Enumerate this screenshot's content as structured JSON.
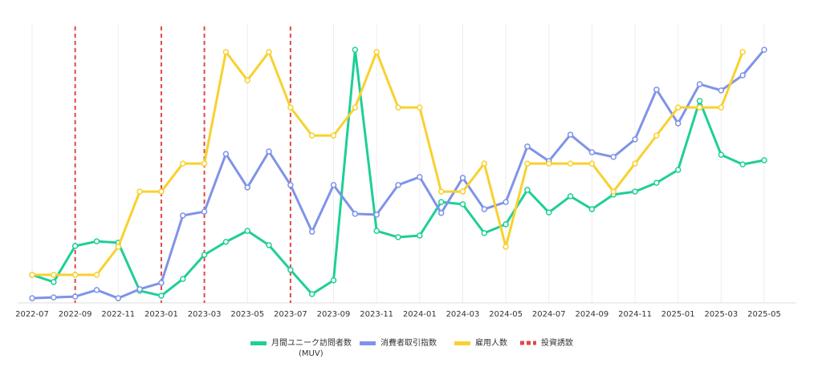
{
  "chart_data": {
    "type": "line",
    "categories": [
      "2022-07",
      null,
      "2022-09",
      null,
      "2022-11",
      null,
      "2023-01",
      null,
      "2023-03",
      null,
      "2023-05",
      null,
      "2023-07",
      null,
      "2023-09",
      null,
      "2023-11",
      null,
      "2024-01",
      null,
      "2024-03",
      null,
      "2024-05",
      null,
      "2024-07",
      null,
      "2024-09",
      null,
      "2024-11",
      null,
      "2025-01",
      null,
      "2025-03",
      null,
      "2025-05"
    ],
    "series": [
      {
        "name": "月間ユニーク訪問者数\n(MUV)",
        "color": "#1ecf97",
        "values": [
          10.2,
          7.6,
          20.7,
          22.4,
          21.9,
          4.4,
          2.6,
          8.7,
          17.5,
          22.2,
          26.2,
          21.0,
          12.0,
          3.2,
          8.2,
          92.1,
          26.2,
          23.9,
          24.5,
          36.7,
          35.9,
          25.4,
          28.6,
          41.1,
          32.9,
          38.8,
          34.1,
          39.4,
          40.5,
          43.7,
          48.4,
          73.5,
          53.9,
          50.4,
          51.9
        ]
      },
      {
        "name": "消費者取引指数",
        "color": "#7f93e8",
        "values": [
          1.7,
          2.0,
          2.3,
          4.7,
          1.7,
          5.0,
          7.3,
          31.8,
          33.2,
          54.2,
          42.0,
          55.1,
          42.9,
          25.9,
          42.9,
          32.4,
          32.1,
          42.9,
          45.8,
          32.7,
          45.5,
          34.1,
          36.7,
          56.9,
          51.6,
          61.2,
          54.8,
          53.1,
          59.5,
          77.6,
          65.3,
          79.6,
          77.3,
          82.8,
          92.1
        ]
      },
      {
        "name": "雇用人数",
        "color": "#f8d12f",
        "values": [
          10.2,
          10.2,
          10.2,
          10.2,
          20.4,
          40.5,
          40.5,
          50.7,
          50.7,
          91.3,
          81.0,
          91.3,
          71.1,
          60.9,
          60.9,
          71.1,
          91.3,
          71.1,
          71.1,
          40.5,
          40.5,
          50.7,
          20.4,
          50.7,
          50.7,
          50.7,
          50.7,
          40.5,
          50.7,
          60.9,
          71.1,
          71.1,
          71.1,
          91.3,
          null
        ]
      }
    ],
    "events": {
      "name": "投資誘致",
      "color": "#e04848",
      "x": [
        "2022-09",
        "2023-01",
        "2023-03",
        "2023-07"
      ]
    },
    "ylim": [
      0,
      100
    ],
    "grid": true,
    "legend": "bottom"
  }
}
